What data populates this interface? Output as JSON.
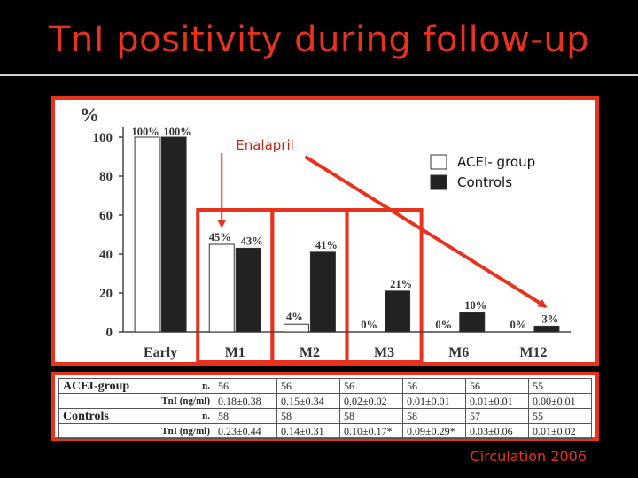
{
  "slide": {
    "title": "TnI positivity during follow-up",
    "source": "Circulation 2006",
    "annotation": "Enalapril",
    "colors": {
      "accent": "#e8321e",
      "acei_bar": "#ffffff",
      "control_bar": "#222222"
    }
  },
  "chart_data": {
    "type": "bar",
    "ylabel": "%",
    "ylim": [
      0,
      100
    ],
    "yticks": [
      0,
      20,
      40,
      60,
      80,
      100
    ],
    "categories": [
      "Early",
      "M1",
      "M2",
      "M3",
      "M6",
      "M12"
    ],
    "series": [
      {
        "name": "ACEI- group",
        "values": [
          100,
          45,
          4,
          0,
          0,
          0
        ],
        "labels": [
          "100%",
          "45%",
          "4%",
          "0%",
          "0%",
          "0%"
        ]
      },
      {
        "name": "Controls",
        "values": [
          100,
          43,
          41,
          21,
          10,
          3
        ],
        "labels": [
          "100%",
          "43%",
          "41%",
          "21%",
          "10%",
          "3%"
        ]
      }
    ],
    "legend_position": "top-right",
    "highlighted_categories": [
      "M1",
      "M2",
      "M3"
    ],
    "trend_arrow": {
      "from_category": "M2",
      "to_category": "M12"
    }
  },
  "table": {
    "n_label": "n.",
    "tni_label": "TnI (ng/ml)",
    "groups": [
      {
        "name": "ACEI-group",
        "n": [
          "56",
          "56",
          "56",
          "56",
          "56",
          "55"
        ],
        "tni": [
          "0.18±0.38",
          "0.15±0.34",
          "0.02±0.02",
          "0.01±0.01",
          "0.01±0.01",
          "0.00±0.01"
        ]
      },
      {
        "name": "Controls",
        "n": [
          "58",
          "58",
          "58",
          "58",
          "57",
          "55"
        ],
        "tni": [
          "0.23±0.44",
          "0.14±0.31",
          "0.10±0.17*",
          "0.09±0.29*",
          "0.03±0.06",
          "0.01±0.02"
        ]
      }
    ]
  }
}
